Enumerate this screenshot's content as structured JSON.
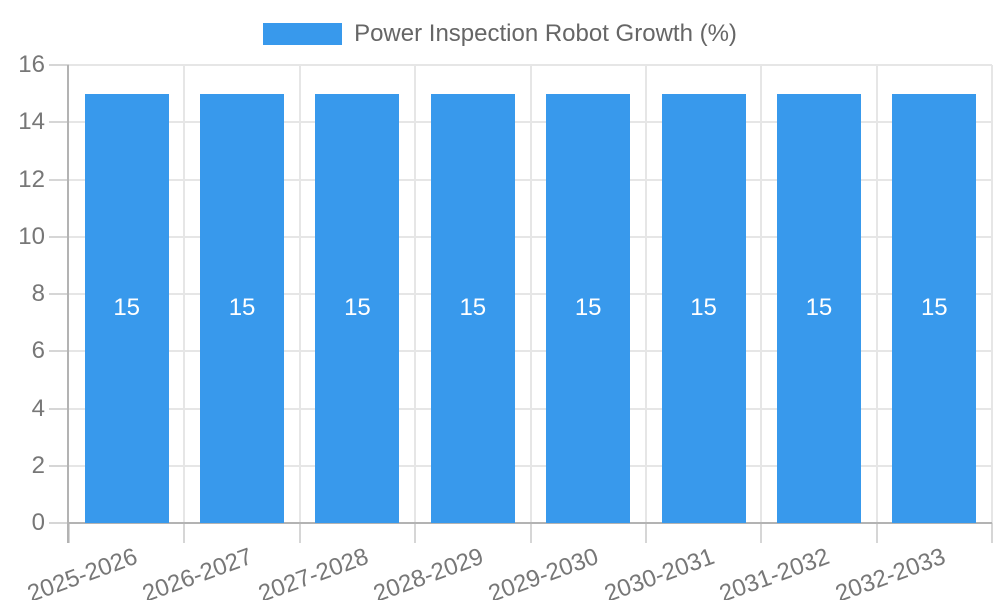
{
  "legend": {
    "label": "Power Inspection Robot Growth (%)"
  },
  "chart_data": {
    "type": "bar",
    "title": "Power Inspection Robot Growth (%)",
    "categories": [
      "2025-2026",
      "2026-2027",
      "2027-2028",
      "2028-2029",
      "2029-2030",
      "2030-2031",
      "2031-2032",
      "2032-2033"
    ],
    "series": [
      {
        "name": "Power Inspection Robot Growth (%)",
        "values": [
          15,
          15,
          15,
          15,
          15,
          15,
          15,
          15
        ]
      }
    ],
    "bar_value_labels": [
      "15",
      "15",
      "15",
      "15",
      "15",
      "15",
      "15",
      "15"
    ],
    "xlabel": "",
    "ylabel": "",
    "ylim": [
      0,
      16
    ],
    "yticks": [
      0,
      2,
      4,
      6,
      8,
      10,
      12,
      14,
      16
    ],
    "grid": true,
    "legend_position": "top",
    "x_label_rotation_deg": -20,
    "colors": {
      "bar": "#3899EC",
      "bar_label": "#FFFFFF",
      "grid": "#E6E6E6",
      "tick_mark": "#D6D6D6",
      "axis": "#B3B3B3",
      "tick_text": "#777777",
      "legend_text": "#666666",
      "background": "#FFFFFF"
    }
  }
}
